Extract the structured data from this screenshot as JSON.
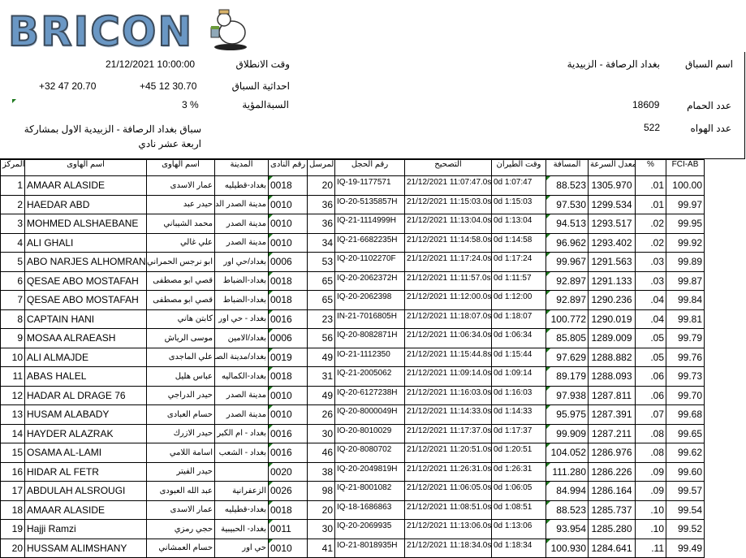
{
  "logo": {
    "text": "BRICON"
  },
  "race": {
    "name_label": "اسم السباق",
    "name_value": "بغداد الرصافة - الزبيدية",
    "start_label": "وقت الانطلاق",
    "start_value": "21/12/2021 10:00:00",
    "coords_label": "احداثية السباق",
    "coord_lat": "+45 12 30.70",
    "coord_lon": "+32 47 20.70",
    "percent_label": "السبةالمؤية",
    "percent_value": "3 %",
    "birds_label": "عدد الحمام",
    "birds_value": "18609",
    "fanciers_label": "عدد الهواه",
    "fanciers_value": "522",
    "description": "سباق بغداد الرصافة - الزبيدية الاول بمشاركة اربعة عشر نادي"
  },
  "table": {
    "headers": [
      "المركز",
      "اسم الهاوى",
      "اسم الهاوى",
      "المدينة",
      "رقم النادى",
      "المرسل",
      "رقم الحجل",
      "التصحيح",
      "وقت الطيران",
      "المسافة",
      "معدل السرعة",
      "%",
      "FCI-AB"
    ],
    "rows": [
      [
        "1",
        "AMAAR ALASIDE",
        "عمار الاسدى",
        "بغداد-قطيليه",
        "0018",
        "20",
        "IQ-19-1177571",
        "21/12/2021 11:07:47.0s",
        "0d 1:07:47",
        "88.523",
        "1305.970",
        ".01",
        "100.00"
      ],
      [
        "2",
        "HAEDAR ABD",
        "حيدر عبد",
        "مدينة الصدر الدسيم",
        "0010",
        "36",
        "IO-20-5135857H",
        "21/12/2021 11:15:03.0s",
        "0d 1:15:03",
        "97.530",
        "1299.534",
        ".01",
        "99.97"
      ],
      [
        "3",
        "MOHMED ALSHAEBANE",
        "محمد الشيباني",
        "مدينة الصدر",
        "0010",
        "36",
        "IQ-21-1114999H",
        "21/12/2021 11:13:04.0s",
        "0d 1:13:04",
        "94.513",
        "1293.517",
        ".02",
        "99.95"
      ],
      [
        "4",
        "ALI GHALI",
        "علي غالي",
        "مدينة الصدر",
        "0010",
        "34",
        "IQ-21-6682235H",
        "21/12/2021 11:14:58.0s",
        "0d 1:14:58",
        "96.962",
        "1293.402",
        ".02",
        "99.92"
      ],
      [
        "5",
        "ABO NARJES ALHOMRANE",
        "ابو نرجس الحمراني",
        "بغداد/حي اور",
        "0006",
        "53",
        "IQ-20-1102270F",
        "21/12/2021 11:17:24.0s",
        "0d 1:17:24",
        "99.967",
        "1291.563",
        ".03",
        "99.89"
      ],
      [
        "6",
        "QESAE ABO MOSTAFAH",
        "قصي ابو مصطفى",
        "بغداد-الضباط",
        "0018",
        "65",
        "IQ-20-2062372H",
        "21/12/2021 11:11:57.0s",
        "0d 1:11:57",
        "92.897",
        "1291.133",
        ".03",
        "99.87"
      ],
      [
        "7",
        "QESAE ABO MOSTAFAH",
        "قصي ابو مصطفى",
        "بغداد-الضباط",
        "0018",
        "65",
        "IQ-20-2062398",
        "21/12/2021 11:12:00.0s",
        "0d 1:12:00",
        "92.897",
        "1290.236",
        ".04",
        "99.84"
      ],
      [
        "8",
        "CAPTAIN HANI",
        "كابتن هاني",
        "بغداد - حي اور",
        "0016",
        "23",
        "IN-21-7016805H",
        "21/12/2021 11:18:07.0s",
        "0d 1:18:07",
        "100.772",
        "1290.019",
        ".04",
        "99.81"
      ],
      [
        "9",
        "MOSAA ALRAEASH",
        "موسى الرياش",
        "بغداد/الامين",
        "0006",
        "56",
        "IQ-20-8082871H",
        "21/12/2021 11:06:34.0s",
        "0d 1:06:34",
        "85.805",
        "1289.009",
        ".05",
        "99.79"
      ],
      [
        "10",
        "ALI ALMAJDE",
        "علي الماجدى",
        "بغداد/مدينة الصدر",
        "0019",
        "49",
        "IO-21-1112350",
        "21/12/2021 11:15:44.8s",
        "0d 1:15:44",
        "97.629",
        "1288.882",
        ".05",
        "99.76"
      ],
      [
        "11",
        "ABAS HALEL",
        "عباس هليل",
        "بغداد-الكماليه",
        "0018",
        "31",
        "IQ-21-2005062",
        "21/12/2021 11:09:14.0s",
        "0d 1:09:14",
        "89.179",
        "1288.093",
        ".06",
        "99.73"
      ],
      [
        "12",
        "HADAR AL DRAGE 76",
        "حيدر الدراجي",
        "مدينة الصدر",
        "0010",
        "49",
        "IQ-20-6127238H",
        "21/12/2021 11:16:03.0s",
        "0d 1:16:03",
        "97.938",
        "1287.811",
        ".06",
        "99.70"
      ],
      [
        "13",
        "HUSAM ALABADY",
        "حسام العبادى",
        "مدينة الصدر",
        "0010",
        "26",
        "IQ-20-8000049H",
        "21/12/2021 11:14:33.0s",
        "0d 1:14:33",
        "95.975",
        "1287.391",
        ".07",
        "99.68"
      ],
      [
        "14",
        "HAYDER ALAZRAK",
        "حيدر الازرك",
        "بغداد - ام الكبر",
        "0016",
        "30",
        "IO-20-8010029",
        "21/12/2021 11:17:37.0s",
        "0d 1:17:37",
        "99.909",
        "1287.211",
        ".08",
        "99.65"
      ],
      [
        "15",
        "OSAMA AL-LAMI",
        "اسامة اللامي",
        "بغداد - الشعب",
        "0016",
        "46",
        "IQ-20-8080702",
        "21/12/2021 11:20:51.0s",
        "0d 1:20:51",
        "104.052",
        "1286.976",
        ".08",
        "99.62"
      ],
      [
        "16",
        "HIDAR AL FETR",
        "حيدر الفيتر",
        "",
        "0020",
        "38",
        "IQ-20-2049819H",
        "21/12/2021 11:26:31.0s",
        "0d 1:26:31",
        "111.280",
        "1286.226",
        ".09",
        "99.60"
      ],
      [
        "17",
        "ABDULAH ALSROUGI",
        "عبد الله العبودى",
        "الزعفرانية",
        "0026",
        "98",
        "IQ-21-8001082",
        "21/12/2021 11:06:05.0s",
        "0d 1:06:05",
        "84.994",
        "1286.164",
        ".09",
        "99.57"
      ],
      [
        "18",
        "AMAAR ALASIDE",
        "عمار الاسدى",
        "بغداد-قطيليه",
        "0018",
        "20",
        "IQ-18-1686863",
        "21/12/2021 11:08:51.0s",
        "0d 1:08:51",
        "88.523",
        "1285.737",
        ".10",
        "99.54"
      ],
      [
        "19",
        "Hajji Ramzi",
        "حجي رمزي",
        "بغداد- الحبيبية",
        "0011",
        "30",
        "IQ-20-2069935",
        "21/12/2021 11:13:06.0s",
        "0d 1:13:06",
        "93.954",
        "1285.280",
        ".10",
        "99.52"
      ],
      [
        "20",
        "HUSSAM ALIMSHANY",
        "حسام العمشاني",
        "حي اور",
        "0010",
        "41",
        "IO-21-8018935H",
        "21/12/2021 11:18:34.0s",
        "0d 1:18:34",
        "100.930",
        "1284.641",
        ".11",
        "99.49"
      ]
    ]
  }
}
